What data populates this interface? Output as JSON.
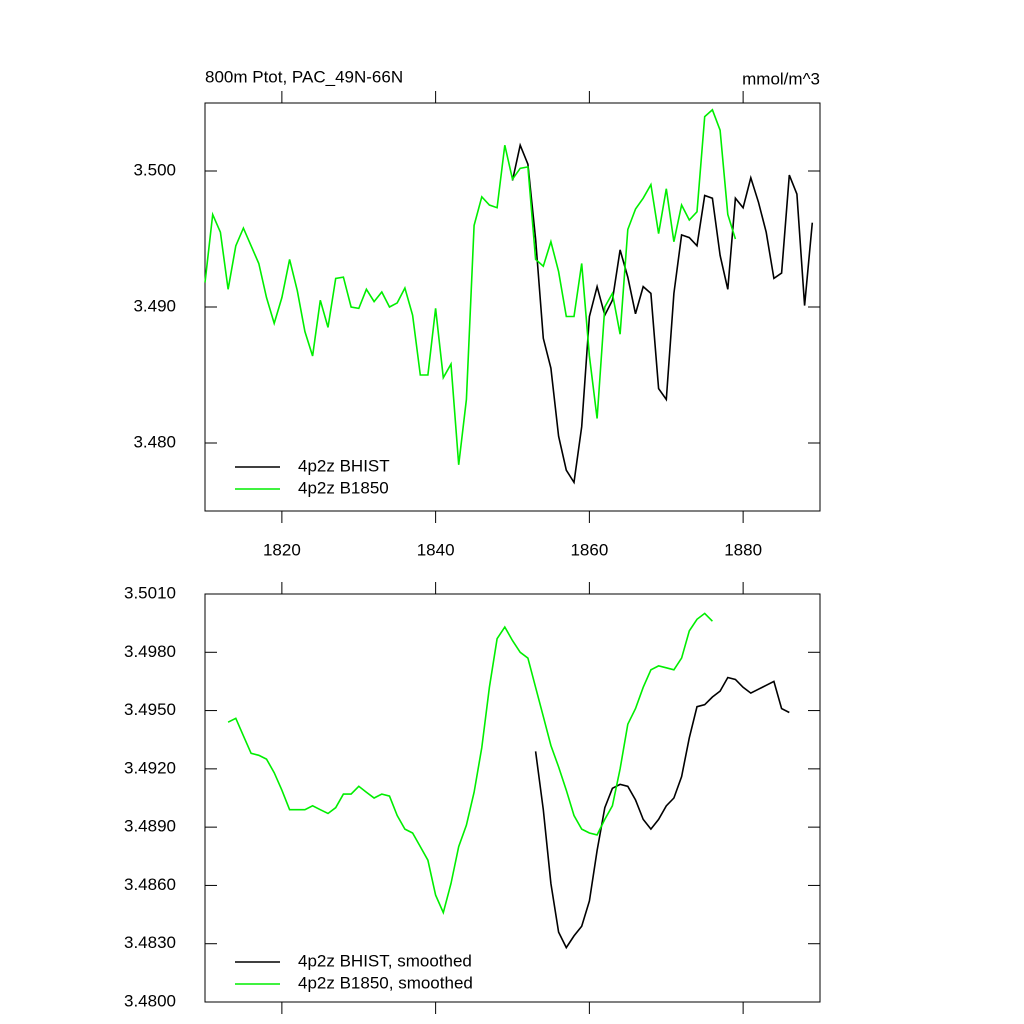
{
  "chart_data": [
    {
      "type": "line",
      "title": "800m Ptot, PAC_49N-66N",
      "units": "mmol/m^3",
      "x": [
        1810,
        1811,
        1812,
        1813,
        1814,
        1815,
        1816,
        1817,
        1818,
        1819,
        1820,
        1821,
        1822,
        1823,
        1824,
        1825,
        1826,
        1827,
        1828,
        1829,
        1830,
        1831,
        1832,
        1833,
        1834,
        1835,
        1836,
        1837,
        1838,
        1839,
        1840,
        1841,
        1842,
        1843,
        1844,
        1845,
        1846,
        1847,
        1848,
        1849,
        1850,
        1851,
        1852,
        1853,
        1854,
        1855,
        1856,
        1857,
        1858,
        1859,
        1860,
        1861,
        1862,
        1863,
        1864,
        1865,
        1866,
        1867,
        1868,
        1869,
        1870,
        1871,
        1872,
        1873,
        1874,
        1875,
        1876,
        1877,
        1878,
        1879,
        1880,
        1881,
        1882,
        1883,
        1884,
        1885,
        1886,
        1887,
        1888,
        1889
      ],
      "series": [
        {
          "name": "4p2z BHIST",
          "color": "#000000",
          "values": [
            null,
            null,
            null,
            null,
            null,
            null,
            null,
            null,
            null,
            null,
            null,
            null,
            null,
            null,
            null,
            null,
            null,
            null,
            null,
            null,
            null,
            null,
            null,
            null,
            null,
            null,
            null,
            null,
            null,
            null,
            null,
            null,
            null,
            null,
            null,
            null,
            null,
            null,
            null,
            null,
            3.4993,
            3.5019,
            3.5005,
            3.495,
            3.4877,
            3.4855,
            3.4805,
            3.478,
            3.4771,
            3.4812,
            3.4893,
            3.4915,
            3.4894,
            3.4905,
            3.4942,
            3.4922,
            3.4895,
            3.4915,
            3.491,
            3.484,
            3.4832,
            3.491,
            3.4953,
            3.4951,
            3.4945,
            3.4982,
            3.498,
            3.4938,
            3.4913,
            3.498,
            3.4973,
            3.4995,
            3.4977,
            3.4955,
            3.4921,
            3.4925,
            3.4997,
            3.4983,
            3.4901,
            3.4962
          ]
        },
        {
          "name": "4p2z B1850",
          "color": "#00ee00",
          "values": [
            3.4918,
            3.4968,
            3.4955,
            3.4913,
            3.4945,
            3.4958,
            3.4945,
            3.4932,
            3.4907,
            3.4888,
            3.4907,
            3.4935,
            3.4912,
            3.4882,
            3.4864,
            3.4905,
            3.4885,
            3.4921,
            3.4922,
            3.49,
            3.4899,
            3.4913,
            3.4904,
            3.4911,
            3.49,
            3.4903,
            3.4914,
            3.4894,
            3.485,
            3.485,
            3.4899,
            3.4848,
            3.4858,
            3.4784,
            3.4832,
            3.496,
            3.4981,
            3.4975,
            3.4973,
            3.5019,
            3.4994,
            3.5002,
            3.5003,
            3.4935,
            3.493,
            3.4948,
            3.4926,
            3.4893,
            3.4893,
            3.4932,
            3.4864,
            3.4818,
            3.49,
            3.491,
            3.488,
            3.4957,
            3.4972,
            3.498,
            3.499,
            3.4954,
            3.4987,
            3.4948,
            3.4975,
            3.4964,
            3.497,
            3.504,
            3.5045,
            3.503,
            3.4968,
            3.495,
            null,
            null,
            null,
            null,
            null,
            null,
            null,
            null,
            null,
            null
          ]
        }
      ],
      "xlim": [
        1810,
        1890
      ],
      "xticks": [
        1820,
        1840,
        1860,
        1880
      ],
      "ylim": [
        3.475,
        3.505
      ],
      "yticks": [
        {
          "value": 3.48,
          "label": "3.480"
        },
        {
          "value": 3.49,
          "label": "3.490"
        },
        {
          "value": 3.5,
          "label": "3.500"
        }
      ]
    },
    {
      "type": "line",
      "x": [
        1813,
        1814,
        1815,
        1816,
        1817,
        1818,
        1819,
        1820,
        1821,
        1822,
        1823,
        1824,
        1825,
        1826,
        1827,
        1828,
        1829,
        1830,
        1831,
        1832,
        1833,
        1834,
        1835,
        1836,
        1837,
        1838,
        1839,
        1840,
        1841,
        1842,
        1843,
        1844,
        1845,
        1846,
        1847,
        1848,
        1849,
        1850,
        1851,
        1852,
        1853,
        1854,
        1855,
        1856,
        1857,
        1858,
        1859,
        1860,
        1861,
        1862,
        1863,
        1864,
        1865,
        1866,
        1867,
        1868,
        1869,
        1870,
        1871,
        1872,
        1873,
        1874,
        1875,
        1876,
        1877,
        1878,
        1879,
        1880,
        1881,
        1882,
        1883,
        1884,
        1885,
        1886
      ],
      "series": [
        {
          "name": "4p2z BHIST, smoothed",
          "color": "#000000",
          "values": [
            null,
            null,
            null,
            null,
            null,
            null,
            null,
            null,
            null,
            null,
            null,
            null,
            null,
            null,
            null,
            null,
            null,
            null,
            null,
            null,
            null,
            null,
            null,
            null,
            null,
            null,
            null,
            null,
            null,
            null,
            null,
            null,
            null,
            null,
            null,
            null,
            null,
            null,
            null,
            null,
            3.4929,
            3.4899,
            3.4861,
            3.4836,
            3.4828,
            3.4834,
            3.4839,
            3.4852,
            3.4878,
            3.49,
            3.491,
            3.4912,
            3.4911,
            3.4904,
            3.4894,
            3.4889,
            3.4894,
            3.4901,
            3.4905,
            3.4916,
            3.4936,
            3.4952,
            3.4953,
            3.4957,
            3.496,
            3.4967,
            3.4966,
            3.4962,
            3.4959,
            3.4961,
            3.4963,
            3.4965,
            3.4951,
            3.4949
          ]
        },
        {
          "name": "4p2z B1850, smoothed",
          "color": "#00ee00",
          "values": [
            3.4944,
            3.4946,
            3.4937,
            3.4928,
            3.4927,
            3.4925,
            3.4918,
            3.4909,
            3.4899,
            3.4899,
            3.4899,
            3.4901,
            3.4899,
            3.4897,
            3.49,
            3.4907,
            3.4907,
            3.4911,
            3.4908,
            3.4905,
            3.4907,
            3.4906,
            3.4896,
            3.4889,
            3.4887,
            3.488,
            3.4873,
            3.4855,
            3.4846,
            3.4861,
            3.488,
            3.4891,
            3.4908,
            3.4931,
            3.4962,
            3.4987,
            3.4993,
            3.4986,
            3.498,
            3.4977,
            3.4962,
            3.4947,
            3.4932,
            3.4921,
            3.4909,
            3.4896,
            3.4889,
            3.4887,
            3.4886,
            3.4894,
            3.4901,
            3.492,
            3.4943,
            3.4951,
            3.4962,
            3.4971,
            3.4973,
            3.4972,
            3.4971,
            3.4977,
            3.4991,
            3.4997,
            3.5,
            3.4996,
            null,
            null,
            null,
            null,
            null,
            null,
            null,
            null,
            null,
            null
          ]
        }
      ],
      "xlim": [
        1810,
        1890
      ],
      "xticks": [
        1820,
        1840,
        1860,
        1880
      ],
      "ylim": [
        3.48,
        3.501
      ],
      "yticks": [
        {
          "value": 3.48,
          "label": "3.4800"
        },
        {
          "value": 3.483,
          "label": "3.4830"
        },
        {
          "value": 3.486,
          "label": "3.4860"
        },
        {
          "value": 3.489,
          "label": "3.4890"
        },
        {
          "value": 3.492,
          "label": "3.4920"
        },
        {
          "value": 3.495,
          "label": "3.4950"
        },
        {
          "value": 3.498,
          "label": "3.4980"
        },
        {
          "value": 3.501,
          "label": "3.5010"
        }
      ]
    }
  ]
}
